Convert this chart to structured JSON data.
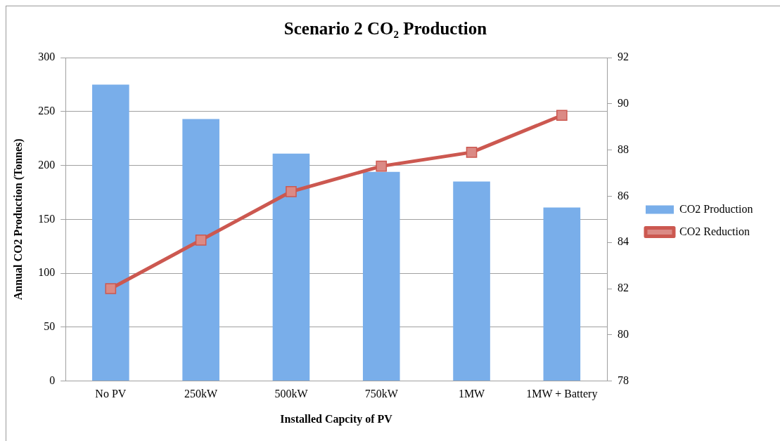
{
  "chart_data": {
    "type": "bar",
    "title": "Scenario 2 CO₂ Production",
    "xlabel": "Installed Capcity of PV",
    "ylabel": "Annual CO2 Production (Tonnes)",
    "categories": [
      "No PV",
      "250kW",
      "500kW",
      "750kW",
      "1MW",
      "1MW + Battery"
    ],
    "series": [
      {
        "name": "CO2 Production",
        "color": "#79aeea",
        "values": [
          275,
          243,
          211,
          194,
          185,
          161
        ]
      },
      {
        "name": "CO2 Reduction",
        "type": "line",
        "axis": "y2",
        "marker": "square",
        "color": "#cc5850",
        "values": [
          82.0,
          84.1,
          86.2,
          87.3,
          87.9,
          89.5
        ]
      }
    ],
    "ylim": [
      0,
      300
    ],
    "yticks": [
      0,
      50,
      100,
      150,
      200,
      250,
      300
    ],
    "y2lim": [
      78,
      92
    ],
    "y2ticks": [
      78,
      80,
      82,
      84,
      86,
      88,
      90,
      92
    ],
    "grid": "y",
    "legend": "right"
  }
}
